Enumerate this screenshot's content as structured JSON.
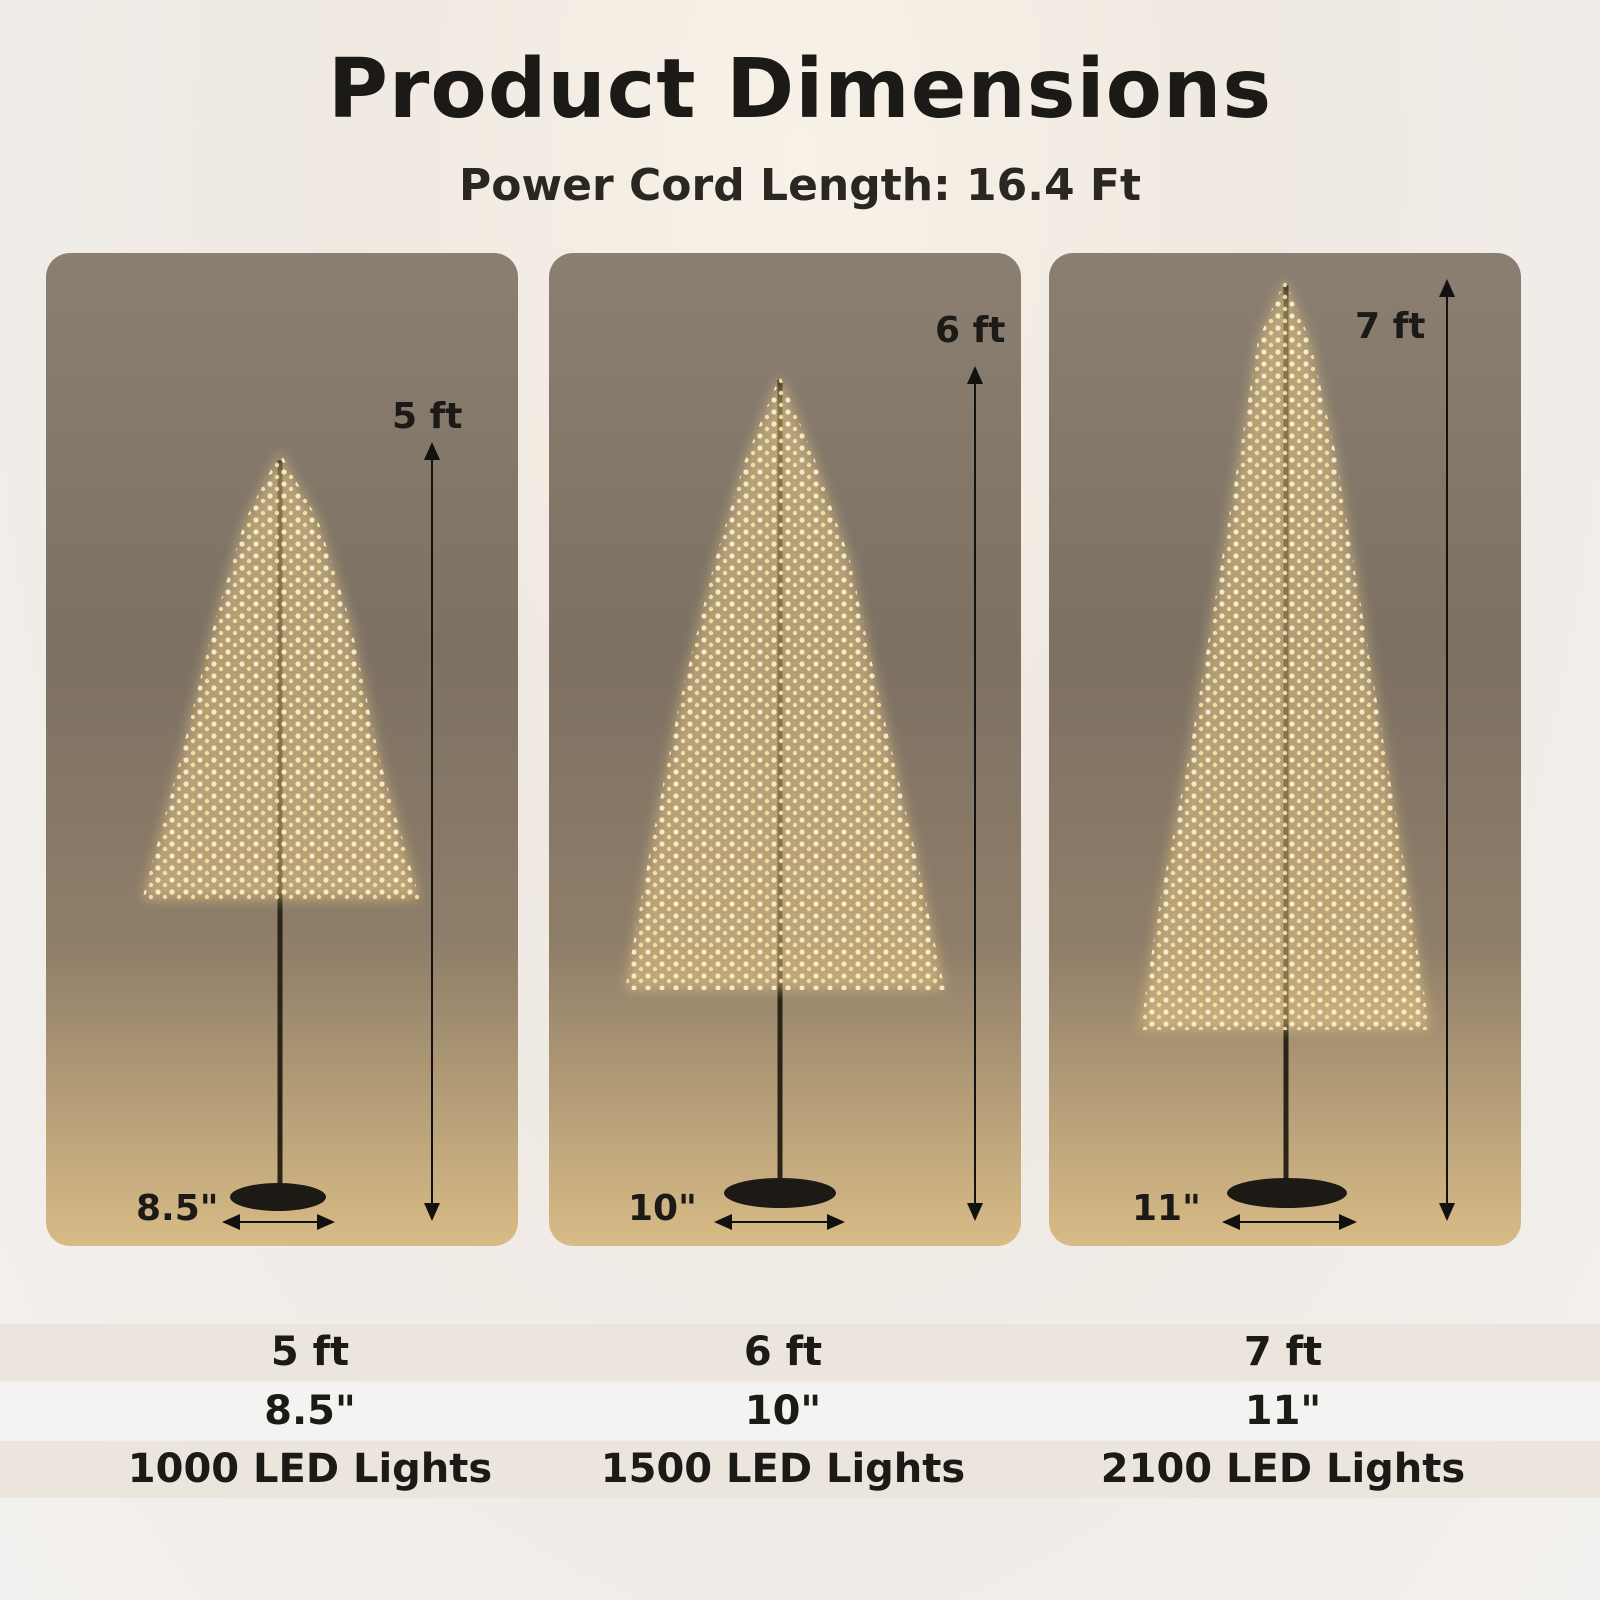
{
  "header": {
    "title": "Product Dimensions",
    "subtitle": "Power Cord Length: 16.4 Ft"
  },
  "panels": [
    {
      "height_label": "5 ft",
      "base_label": "8.5\""
    },
    {
      "height_label": "6 ft",
      "base_label": "10\""
    },
    {
      "height_label": "7 ft",
      "base_label": "11\""
    }
  ],
  "table": {
    "heights": [
      "5 ft",
      "6 ft",
      "7 ft"
    ],
    "base_diameters": [
      "8.5\"",
      "10\"",
      "11\""
    ],
    "lights": [
      "1000 LED Lights",
      "1500 LED Lights",
      "2100 LED Lights"
    ]
  },
  "colors": {
    "panel_top": "#8a7f71",
    "panel_bottom": "#d8bb86",
    "light": "#ffe9b0",
    "row_shade": "#ebe5de"
  }
}
